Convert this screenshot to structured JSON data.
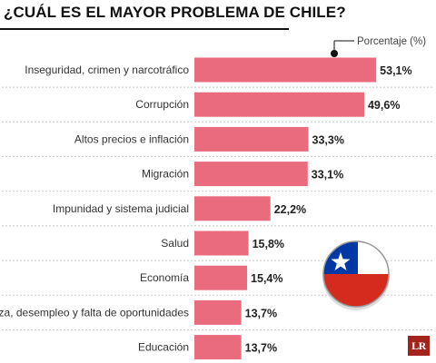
{
  "title": "¿CUÁL ES EL MAYOR PROBLEMA DE CHILE?",
  "logo_text": "LR",
  "colors": {
    "bar": "#e96b7d",
    "flag_red": "#d52b1e",
    "flag_blue": "#0039a6"
  },
  "icons": [
    "chile-flag-icon",
    "lr-logo-icon"
  ],
  "chart_data": {
    "type": "bar",
    "orientation": "horizontal",
    "legend": "Porcentaje (%)",
    "legend_position": "top-right",
    "categories": [
      "Inseguridad, crimen y narcotráfico",
      "Corrupción",
      "Altos precios e inflación",
      "Migración",
      "Impunidad y sistema judicial",
      "Salud",
      "Economía",
      "Pobreza, desempleo y falta de oportunidades",
      "Educación"
    ],
    "values": [
      53.1,
      49.6,
      33.3,
      33.1,
      22.2,
      15.8,
      15.4,
      13.7,
      13.7
    ],
    "value_labels": [
      "53,1%",
      "49,6%",
      "33,3%",
      "33,1%",
      "22,2%",
      "15,8%",
      "15,4%",
      "13,7%",
      "13,7%"
    ],
    "xlim": [
      0,
      60
    ],
    "grid": "dashed row separators"
  }
}
